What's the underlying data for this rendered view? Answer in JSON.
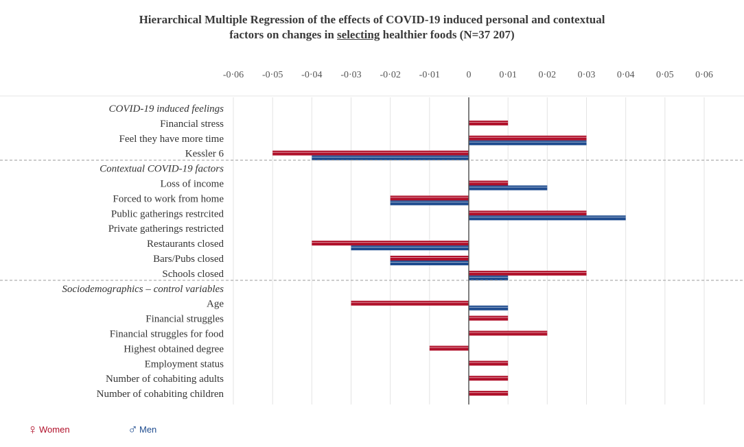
{
  "chart_data": {
    "type": "bar",
    "orientation": "horizontal",
    "title_line1": "Hierarchical Multiple Regression of the effects of COVID-19 induced personal and contextual",
    "title_line2_pre": "factors on changes in ",
    "title_line2_underlined": "selecting",
    "title_line2_post": " healthier foods (N=37 207)",
    "xlim": [
      -0.06,
      0.06
    ],
    "x_ticks": [
      -0.06,
      -0.05,
      -0.04,
      -0.03,
      -0.02,
      -0.01,
      0,
      0.01,
      0.02,
      0.03,
      0.04,
      0.05,
      0.06
    ],
    "x_tick_labels": [
      "-0·06",
      "-0·05",
      "-0·04",
      "-0·03",
      "-0·02",
      "-0·01",
      "0",
      "0·01",
      "0·02",
      "0·03",
      "0·04",
      "0·05",
      "0·06"
    ],
    "rows": [
      {
        "kind": "group",
        "label": "COVID-19 induced feelings"
      },
      {
        "kind": "item",
        "label": "Financial stress",
        "women": 0.01,
        "men": null
      },
      {
        "kind": "item",
        "label": "Feel they have more time",
        "women": 0.03,
        "men": 0.03
      },
      {
        "kind": "item",
        "label": "Kessler 6",
        "women": -0.05,
        "men": -0.04
      },
      {
        "kind": "group",
        "label": "Contextual COVID-19 factors"
      },
      {
        "kind": "item",
        "label": "Loss of income",
        "women": 0.01,
        "men": 0.02
      },
      {
        "kind": "item",
        "label": "Forced to work from home",
        "women": -0.02,
        "men": -0.02
      },
      {
        "kind": "item",
        "label": "Public gatherings restrcited",
        "women": 0.03,
        "men": 0.04
      },
      {
        "kind": "item",
        "label": "Private gatherings restricted",
        "women": null,
        "men": null
      },
      {
        "kind": "item",
        "label": "Restaurants closed",
        "women": -0.04,
        "men": -0.03
      },
      {
        "kind": "item",
        "label": "Bars/Pubs closed",
        "women": -0.02,
        "men": -0.02
      },
      {
        "kind": "item",
        "label": "Schools closed",
        "women": 0.03,
        "men": 0.01
      },
      {
        "kind": "group",
        "label": "Sociodemographics – control variables"
      },
      {
        "kind": "item",
        "label": "Age",
        "women": -0.03,
        "men": 0.01
      },
      {
        "kind": "item",
        "label": "Financial struggles",
        "women": 0.01,
        "men": null
      },
      {
        "kind": "item",
        "label": "Financial struggles for food",
        "women": 0.02,
        "men": null
      },
      {
        "kind": "item",
        "label": "Highest obtained degree",
        "women": -0.01,
        "men": null
      },
      {
        "kind": "item",
        "label": "Employment status",
        "women": 0.01,
        "men": null
      },
      {
        "kind": "item",
        "label": "Number of cohabiting adults",
        "women": 0.01,
        "men": null
      },
      {
        "kind": "item",
        "label": "Number of cohabiting children",
        "women": 0.01,
        "men": null
      }
    ],
    "series": [
      {
        "name": "Women",
        "symbol": "♀",
        "color": "#b0102a"
      },
      {
        "name": "Men",
        "symbol": "♂",
        "color": "#1f4c8f"
      }
    ]
  }
}
